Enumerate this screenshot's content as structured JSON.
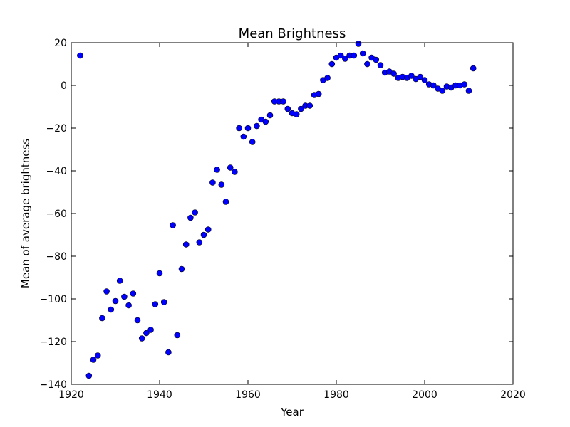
{
  "chart_data": {
    "type": "scatter",
    "title": "Mean Brightness",
    "xlabel": "Year",
    "ylabel": "Mean of average brightness",
    "xlim": [
      1920,
      2020
    ],
    "ylim": [
      -140,
      20
    ],
    "xticks": [
      1920,
      1940,
      1960,
      1980,
      2000,
      2020
    ],
    "yticks": [
      20,
      0,
      -20,
      -40,
      -60,
      -80,
      -100,
      -120,
      -140
    ],
    "grid": false,
    "legend": "none",
    "marker_color": "#0000ff",
    "series": [
      {
        "x": [
          1922,
          1924,
          1925,
          1926,
          1927,
          1928,
          1929,
          1930,
          1931,
          1932,
          1933,
          1934,
          1935,
          1936,
          1937,
          1938,
          1939,
          1940,
          1941,
          1942,
          1943,
          1944,
          1945,
          1946,
          1947,
          1948,
          1949,
          1950,
          1951,
          1952,
          1953,
          1954,
          1955,
          1956,
          1957,
          1958,
          1959,
          1960,
          1961,
          1962,
          1963,
          1964,
          1965,
          1966,
          1967,
          1968,
          1969,
          1970,
          1971,
          1972,
          1973,
          1974,
          1975,
          1976,
          1977,
          1978,
          1979,
          1980,
          1981,
          1982,
          1983,
          1984,
          1985,
          1986,
          1987,
          1988,
          1989,
          1990,
          1991,
          1992,
          1993,
          1994,
          1995,
          1996,
          1997,
          1998,
          1999,
          2000,
          2001,
          2002,
          2003,
          2004,
          2005,
          2006,
          2007,
          2008,
          2009,
          2010,
          2011
        ],
        "y": [
          14,
          -136,
          -128.5,
          -126.5,
          -109,
          -96.5,
          -105,
          -101,
          -91.5,
          -99,
          -103,
          -97.5,
          -110,
          -118.5,
          -116,
          -114.5,
          -102.5,
          -88,
          -101.5,
          -125,
          -65.5,
          -117,
          -86,
          -74.5,
          -62,
          -59.5,
          -73.5,
          -70,
          -67.5,
          -45.5,
          -39.5,
          -46.5,
          -54.5,
          -38.5,
          -40.5,
          -20,
          -24,
          -20,
          -26.5,
          -19,
          -16,
          -17,
          -14,
          -7.5,
          -7.5,
          -7.5,
          -11,
          -13,
          -13.5,
          -11,
          -9.5,
          -9.5,
          -4.5,
          -4,
          2.5,
          3.5,
          10,
          13,
          14,
          12.5,
          14,
          14,
          19.5,
          15,
          10,
          13,
          12,
          9.5,
          6,
          6.5,
          5.5,
          3.5,
          4,
          3.5,
          4.5,
          3,
          4,
          2.5,
          0.5,
          0,
          -1.5,
          -2.5,
          -0.5,
          -1,
          0,
          0,
          0.5,
          -2.5,
          8
        ]
      }
    ]
  }
}
